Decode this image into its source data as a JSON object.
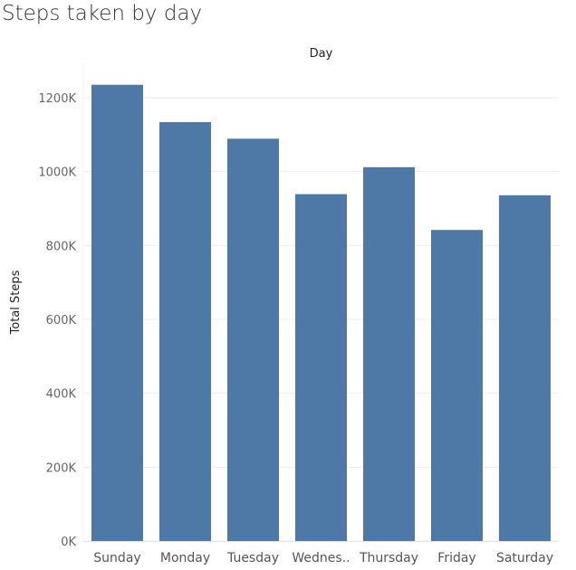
{
  "title": "Steps taken by day",
  "chart_data": {
    "type": "bar",
    "title": "Steps taken by day",
    "xlabel": "Day",
    "ylabel": "Total Steps",
    "categories": [
      "Sunday",
      "Monday",
      "Tuesday",
      "Wednes..",
      "Thursday",
      "Friday",
      "Saturday"
    ],
    "values": [
      1235000,
      1134000,
      1089000,
      939000,
      1012000,
      842000,
      936000
    ],
    "yticks": [
      0,
      200000,
      400000,
      600000,
      800000,
      1000000,
      1200000
    ],
    "ytick_labels": [
      "0K",
      "200K",
      "400K",
      "600K",
      "800K",
      "1000K",
      "1200K"
    ],
    "ylim": [
      0,
      1290000
    ],
    "grid": true,
    "colors": {
      "bar": "#4e79a7",
      "grid": "#eeeeee"
    }
  }
}
